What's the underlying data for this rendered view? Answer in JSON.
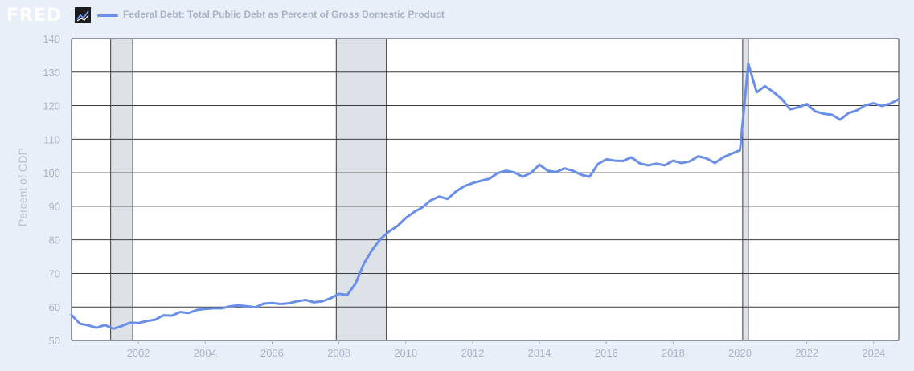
{
  "header": {
    "logo_text": "FRED",
    "series_title": "Federal Debt: Total Public Debt as Percent of Gross Domestic Product"
  },
  "colors": {
    "background": "#e9eff9",
    "plot_background": "#ffffff",
    "line": "#6a8fe8",
    "recession_fill": "#dde1e8",
    "grid": "#3c3c3c"
  },
  "chart_data": {
    "type": "line",
    "title": "Federal Debt: Total Public Debt as Percent of Gross Domestic Product",
    "ylabel": "Percent of GDP",
    "xlabel": "",
    "xlim": [
      2000.0,
      2024.75
    ],
    "ylim": [
      50,
      140
    ],
    "yticks": [
      50,
      60,
      70,
      80,
      90,
      100,
      110,
      120,
      130,
      140
    ],
    "xticks": [
      2002,
      2004,
      2006,
      2008,
      2010,
      2012,
      2014,
      2016,
      2018,
      2020,
      2022,
      2024
    ],
    "grid": true,
    "recessions": [
      [
        2001.17,
        2001.83
      ],
      [
        2007.92,
        2009.42
      ],
      [
        2020.08,
        2020.25
      ]
    ],
    "series": [
      {
        "x": [
          2000.0,
          2000.25,
          2000.5,
          2000.75,
          2001.0,
          2001.25,
          2001.5,
          2001.75,
          2002.0,
          2002.25,
          2002.5,
          2002.75,
          2003.0,
          2003.25,
          2003.5,
          2003.75,
          2004.0,
          2004.25,
          2004.5,
          2004.75,
          2005.0,
          2005.25,
          2005.5,
          2005.75,
          2006.0,
          2006.25,
          2006.5,
          2006.75,
          2007.0,
          2007.25,
          2007.5,
          2007.75,
          2008.0,
          2008.25,
          2008.5,
          2008.75,
          2009.0,
          2009.25,
          2009.5,
          2009.75,
          2010.0,
          2010.25,
          2010.5,
          2010.75,
          2011.0,
          2011.25,
          2011.5,
          2011.75,
          2012.0,
          2012.25,
          2012.5,
          2012.75,
          2013.0,
          2013.25,
          2013.5,
          2013.75,
          2014.0,
          2014.25,
          2014.5,
          2014.75,
          2015.0,
          2015.25,
          2015.5,
          2015.75,
          2016.0,
          2016.25,
          2016.5,
          2016.75,
          2017.0,
          2017.25,
          2017.5,
          2017.75,
          2018.0,
          2018.25,
          2018.5,
          2018.75,
          2019.0,
          2019.25,
          2019.5,
          2019.75,
          2020.0,
          2020.25,
          2020.5,
          2020.75,
          2021.0,
          2021.25,
          2021.5,
          2021.75,
          2022.0,
          2022.25,
          2022.5,
          2022.75,
          2023.0,
          2023.25,
          2023.5,
          2023.75,
          2024.0,
          2024.25,
          2024.5,
          2024.75
        ],
        "values": [
          57.6,
          55.0,
          54.5,
          53.8,
          54.6,
          53.5,
          54.3,
          55.3,
          55.2,
          55.8,
          56.2,
          57.5,
          57.4,
          58.5,
          58.2,
          59.1,
          59.4,
          59.6,
          59.6,
          60.2,
          60.5,
          60.2,
          59.9,
          61.0,
          61.2,
          60.9,
          61.1,
          61.7,
          62.1,
          61.4,
          61.7,
          62.6,
          63.9,
          63.6,
          67.0,
          73.0,
          77.1,
          80.3,
          82.5,
          84.1,
          86.5,
          88.3,
          89.7,
          91.8,
          92.9,
          92.2,
          94.4,
          96.0,
          96.9,
          97.6,
          98.2,
          99.9,
          100.6,
          100.1,
          98.8,
          100.0,
          102.4,
          100.6,
          100.2,
          101.3,
          100.6,
          99.4,
          98.8,
          102.6,
          104.0,
          103.6,
          103.5,
          104.6,
          102.8,
          102.2,
          102.7,
          102.2,
          103.6,
          102.9,
          103.4,
          104.9,
          104.3,
          102.9,
          104.6,
          105.7,
          106.7,
          132.5,
          124.0,
          125.8,
          124.1,
          122.0,
          118.9,
          119.5,
          120.5,
          118.3,
          117.6,
          117.3,
          115.8,
          117.8,
          118.6,
          120.1,
          120.7,
          119.9,
          120.6,
          121.9
        ]
      }
    ]
  }
}
